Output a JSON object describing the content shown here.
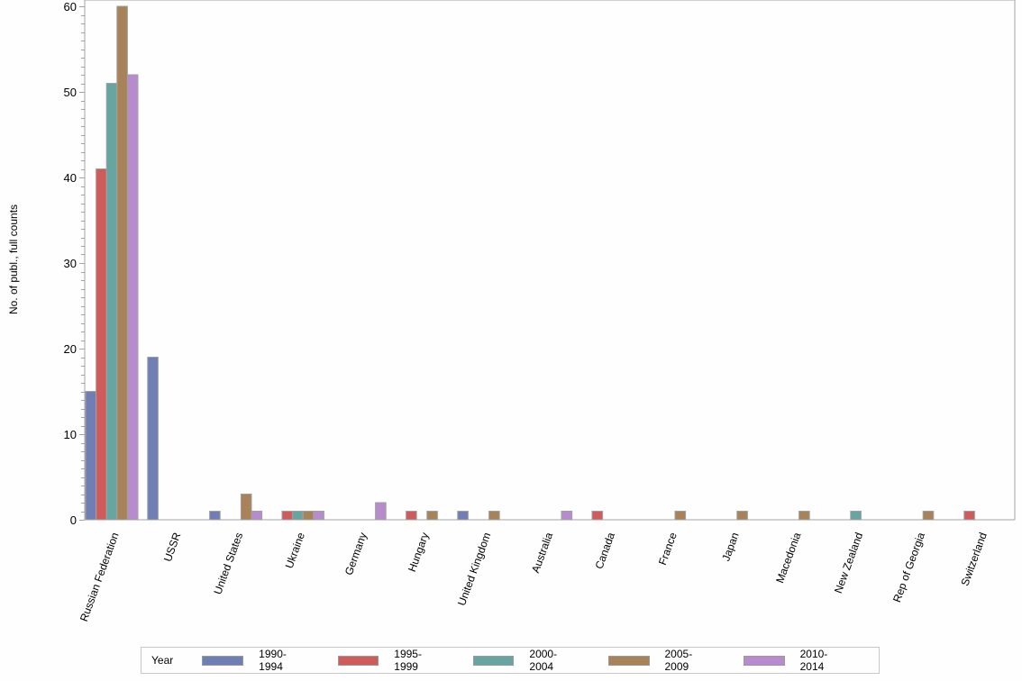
{
  "chart_data": {
    "type": "bar",
    "title": "",
    "xlabel": "",
    "ylabel": "No. of publ., full counts",
    "ylim": [
      0,
      60
    ],
    "yticks": [
      0,
      10,
      20,
      30,
      40,
      50,
      60
    ],
    "grid": false,
    "legend_position": "bottom",
    "legend_title": "Year",
    "categories": [
      "Russian Federation",
      "USSR",
      "United States",
      "Ukraine",
      "Germany",
      "Hungary",
      "United Kingdom",
      "Australia",
      "Canada",
      "France",
      "Japan",
      "Macedonia",
      "New Zealand",
      "Rep of Georgia",
      "Switzerland"
    ],
    "series": [
      {
        "name": "1990-1994",
        "color": "#6f7eb5",
        "values": [
          15,
          19,
          1,
          0,
          0,
          0,
          1,
          0,
          0,
          0,
          0,
          0,
          0,
          0,
          0
        ]
      },
      {
        "name": "1995-1999",
        "color": "#d05b5b",
        "values": [
          41,
          0,
          0,
          1,
          0,
          1,
          0,
          0,
          1,
          0,
          0,
          0,
          0,
          0,
          1
        ]
      },
      {
        "name": "2000-2004",
        "color": "#66a5a0",
        "values": [
          51,
          0,
          0,
          1,
          0,
          0,
          0,
          0,
          0,
          0,
          0,
          0,
          1,
          0,
          0
        ]
      },
      {
        "name": "2005-2009",
        "color": "#a88258",
        "values": [
          60,
          0,
          3,
          1,
          0,
          1,
          1,
          0,
          0,
          1,
          1,
          1,
          0,
          1,
          0
        ]
      },
      {
        "name": "2010-2014",
        "color": "#b88bcc",
        "values": [
          52,
          0,
          1,
          1,
          2,
          0,
          0,
          1,
          0,
          0,
          0,
          0,
          0,
          0,
          0
        ]
      }
    ]
  },
  "legend": {
    "title": "Year",
    "items": [
      {
        "label": "1990-1994",
        "color": "#6f7eb5"
      },
      {
        "label": "1995-1999",
        "color": "#d05b5b"
      },
      {
        "label": "2000-2004",
        "color": "#66a5a0"
      },
      {
        "label": "2005-2009",
        "color": "#a88258"
      },
      {
        "label": "2010-2014",
        "color": "#b88bcc"
      }
    ]
  },
  "colors": {
    "axis": "#a0a4a8",
    "bar_border": "#a0a0a0",
    "background": "#fefefe"
  }
}
